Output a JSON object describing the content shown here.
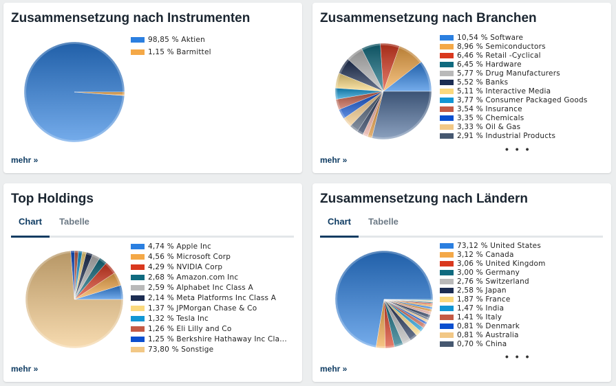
{
  "more_label": "mehr »",
  "ellipsis": "• • •",
  "instruments": {
    "title": "Zusammensetzung nach Instrumenten",
    "chart_data": {
      "type": "pie",
      "items": [
        {
          "label": "98,85 % Aktien",
          "value": 98.85,
          "color": "#2b7fe0"
        },
        {
          "label": "1,15 % Barmittel",
          "value": 1.15,
          "color": "#f4a847"
        }
      ]
    }
  },
  "branches": {
    "title": "Zusammensetzung nach Branchen",
    "chart_data": {
      "type": "pie",
      "items": [
        {
          "label": "10,54 % Software",
          "value": 10.54,
          "color": "#2b7fe0"
        },
        {
          "label": "8,96 % Semiconductors",
          "value": 8.96,
          "color": "#f4a847"
        },
        {
          "label": "6,46 % Retail -Cyclical",
          "value": 6.46,
          "color": "#d9381e"
        },
        {
          "label": "6,45 % Hardware",
          "value": 6.45,
          "color": "#0f6a7f"
        },
        {
          "label": "5,77 % Drug Manufacturers",
          "value": 5.77,
          "color": "#b9b9b9"
        },
        {
          "label": "5,52 % Banks",
          "value": 5.52,
          "color": "#1c2d52"
        },
        {
          "label": "5,11 % Interactive Media",
          "value": 5.11,
          "color": "#fad97e"
        },
        {
          "label": "3,77 % Consumer Packaged Goods",
          "value": 3.77,
          "color": "#1296d4"
        },
        {
          "label": "3,54 % Insurance",
          "value": 3.54,
          "color": "#c45a45"
        },
        {
          "label": "3,35 % Chemicals",
          "value": 3.35,
          "color": "#0b4fcf"
        },
        {
          "label": "3,33 % Oil & Gas",
          "value": 3.33,
          "color": "#f2c886"
        },
        {
          "label": "2,91 % Industrial Products",
          "value": 2.91,
          "color": "#465870"
        }
      ],
      "extra_slices": [
        {
          "value": 2.1,
          "color": "#1a2c4f"
        },
        {
          "value": 1.7,
          "color": "#e6a49a"
        },
        {
          "value": 1.5,
          "color": "#d88a2a"
        },
        {
          "value": 28.76,
          "color": "#4e6f9c"
        }
      ]
    }
  },
  "holdings": {
    "title": "Top Holdings",
    "tabs": [
      "Chart",
      "Tabelle"
    ],
    "chart_data": {
      "type": "pie",
      "items": [
        {
          "label": "4,74 % Apple Inc",
          "value": 4.74,
          "color": "#2b7fe0"
        },
        {
          "label": "4,56 % Microsoft Corp",
          "value": 4.56,
          "color": "#f4a847"
        },
        {
          "label": "4,29 % NVIDIA Corp",
          "value": 4.29,
          "color": "#d9381e"
        },
        {
          "label": "2,68 % Amazon.com Inc",
          "value": 2.68,
          "color": "#0f6a7f"
        },
        {
          "label": "2,59 % Alphabet Inc Class A",
          "value": 2.59,
          "color": "#b9b9b9"
        },
        {
          "label": "2,14 % Meta Platforms Inc Class A",
          "value": 2.14,
          "color": "#1c2d52"
        },
        {
          "label": "1,37 % JPMorgan Chase & Co",
          "value": 1.37,
          "color": "#fad97e"
        },
        {
          "label": "1,32 % Tesla Inc",
          "value": 1.32,
          "color": "#1296d4"
        },
        {
          "label": "1,26 % Eli Lilly and Co",
          "value": 1.26,
          "color": "#c45a45"
        },
        {
          "label": "1,25 % Berkshire Hathaway Inc Cla...",
          "value": 1.25,
          "color": "#0b4fcf"
        },
        {
          "label": "73,80 % Sonstige",
          "value": 73.8,
          "color": "#f2c886"
        }
      ]
    }
  },
  "countries": {
    "title": "Zusammensetzung nach Ländern",
    "tabs": [
      "Chart",
      "Tabelle"
    ],
    "chart_data": {
      "type": "pie",
      "items": [
        {
          "label": "73,12 % United States",
          "value": 73.12,
          "color": "#2b7fe0"
        },
        {
          "label": "3,12 % Canada",
          "value": 3.12,
          "color": "#f4a847"
        },
        {
          "label": "3,06 % United Kingdom",
          "value": 3.06,
          "color": "#d9381e"
        },
        {
          "label": "3,00 % Germany",
          "value": 3.0,
          "color": "#0f6a7f"
        },
        {
          "label": "2,76 % Switzerland",
          "value": 2.76,
          "color": "#b9b9b9"
        },
        {
          "label": "2,58 % Japan",
          "value": 2.58,
          "color": "#1c2d52"
        },
        {
          "label": "1,87 % France",
          "value": 1.87,
          "color": "#fad97e"
        },
        {
          "label": "1,47 % India",
          "value": 1.47,
          "color": "#1296d4"
        },
        {
          "label": "1,41 % Italy",
          "value": 1.41,
          "color": "#c45a45"
        },
        {
          "label": "0,81 % Denmark",
          "value": 0.81,
          "color": "#0b4fcf"
        },
        {
          "label": "0,81 % Australia",
          "value": 0.81,
          "color": "#f2c886"
        },
        {
          "label": "0,70 % China",
          "value": 0.7,
          "color": "#465870"
        }
      ],
      "extra_slices": [
        {
          "value": 1.2,
          "color": "#1a2c4f"
        },
        {
          "value": 1.0,
          "color": "#e6a49a"
        },
        {
          "value": 0.9,
          "color": "#d88a2a"
        },
        {
          "value": 0.8,
          "color": "#2b7fe0"
        },
        {
          "value": 0.7,
          "color": "#f4a847"
        },
        {
          "value": 0.5,
          "color": "#d9381e"
        },
        {
          "value": 0.4,
          "color": "#0f6a7f"
        },
        {
          "value": 0.3,
          "color": "#b9b9b9"
        },
        {
          "value": 0.3,
          "color": "#fad97e"
        },
        {
          "value": 0.27,
          "color": "#1296d4"
        }
      ]
    }
  }
}
